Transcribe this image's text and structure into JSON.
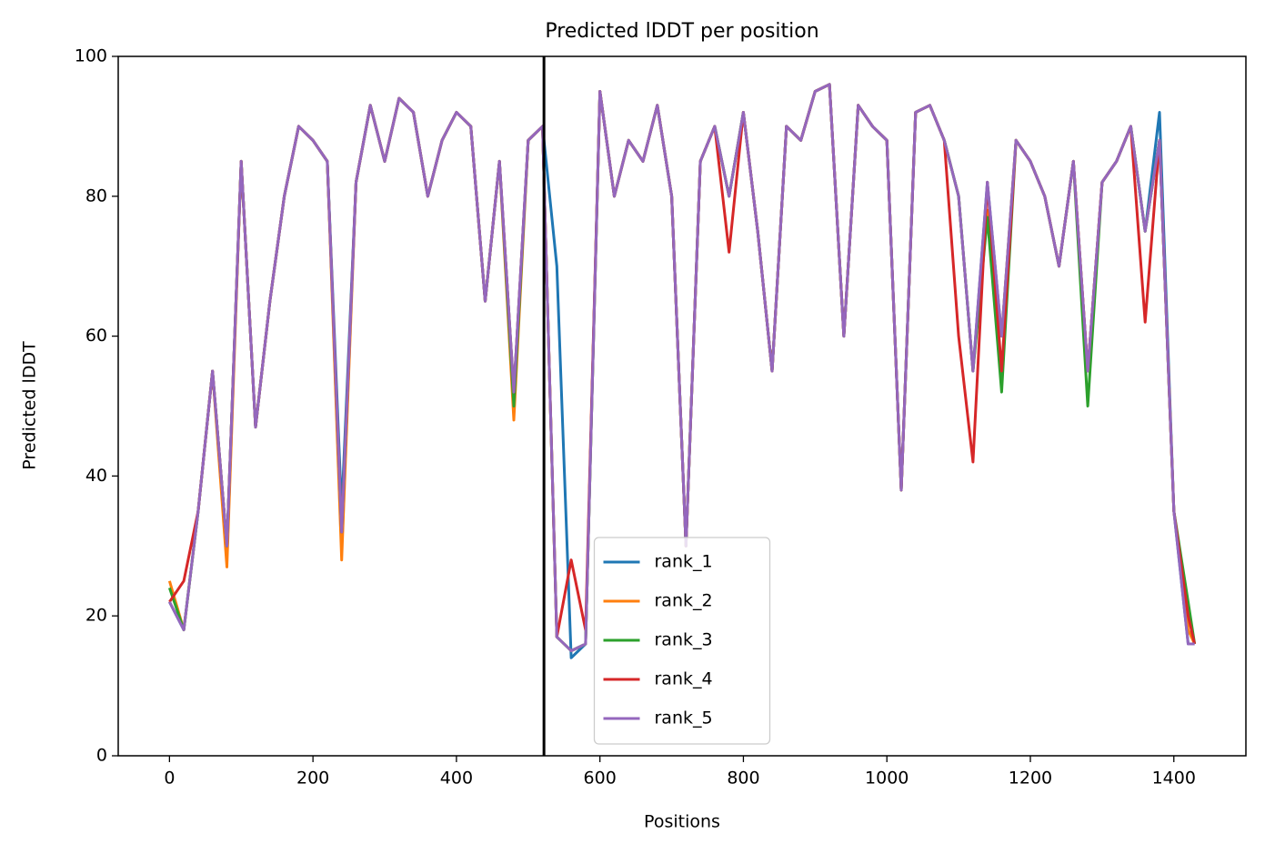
{
  "chart_data": {
    "type": "line",
    "title": "Predicted lDDT per position",
    "xlabel": "Positions",
    "ylabel": "Predicted lDDT",
    "x": [
      0,
      20,
      40,
      60,
      80,
      100,
      120,
      140,
      160,
      180,
      200,
      220,
      240,
      260,
      280,
      300,
      320,
      340,
      360,
      380,
      400,
      420,
      440,
      460,
      480,
      500,
      520,
      540,
      560,
      580,
      600,
      620,
      640,
      660,
      680,
      700,
      720,
      740,
      760,
      780,
      800,
      820,
      840,
      860,
      880,
      900,
      920,
      940,
      960,
      980,
      1000,
      1020,
      1040,
      1060,
      1080,
      1100,
      1120,
      1140,
      1160,
      1180,
      1200,
      1220,
      1240,
      1260,
      1280,
      1300,
      1320,
      1340,
      1360,
      1380,
      1400,
      1420,
      1429
    ],
    "series": [
      {
        "name": "rank_1",
        "color": "#1f77b4",
        "values": [
          22,
          18,
          35,
          55,
          30,
          85,
          47,
          65,
          80,
          90,
          88,
          85,
          35,
          82,
          93,
          85,
          94,
          92,
          80,
          88,
          92,
          90,
          65,
          85,
          52,
          88,
          90,
          70,
          14,
          16,
          95,
          80,
          88,
          85,
          93,
          80,
          30,
          85,
          90,
          80,
          92,
          75,
          55,
          90,
          88,
          95,
          96,
          60,
          93,
          90,
          88,
          38,
          92,
          93,
          88,
          80,
          55,
          82,
          60,
          88,
          85,
          80,
          70,
          85,
          55,
          82,
          85,
          90,
          75,
          92,
          35,
          16,
          16
        ]
      },
      {
        "name": "rank_2",
        "color": "#ff7f0e",
        "values": [
          25,
          18,
          35,
          55,
          27,
          85,
          47,
          65,
          80,
          90,
          88,
          85,
          28,
          82,
          93,
          85,
          94,
          92,
          80,
          88,
          92,
          90,
          65,
          85,
          48,
          88,
          90,
          17,
          15,
          16,
          95,
          80,
          88,
          85,
          93,
          80,
          30,
          85,
          90,
          80,
          92,
          75,
          55,
          90,
          88,
          95,
          96,
          60,
          93,
          90,
          88,
          38,
          92,
          93,
          88,
          80,
          55,
          78,
          60,
          88,
          85,
          80,
          70,
          85,
          55,
          82,
          85,
          90,
          75,
          88,
          35,
          18,
          16
        ]
      },
      {
        "name": "rank_3",
        "color": "#2ca02c",
        "values": [
          24,
          18,
          35,
          55,
          30,
          85,
          47,
          65,
          80,
          90,
          88,
          85,
          32,
          82,
          93,
          85,
          94,
          92,
          80,
          88,
          92,
          90,
          65,
          85,
          50,
          88,
          90,
          17,
          15,
          16,
          95,
          80,
          88,
          85,
          93,
          80,
          30,
          85,
          90,
          80,
          92,
          75,
          55,
          90,
          88,
          95,
          96,
          60,
          93,
          90,
          88,
          38,
          92,
          93,
          88,
          80,
          55,
          77,
          52,
          88,
          85,
          80,
          70,
          85,
          50,
          82,
          85,
          90,
          75,
          88,
          35,
          22,
          16
        ]
      },
      {
        "name": "rank_4",
        "color": "#d62728",
        "values": [
          22,
          25,
          35,
          55,
          30,
          85,
          47,
          65,
          80,
          90,
          88,
          85,
          32,
          82,
          93,
          85,
          94,
          92,
          80,
          88,
          92,
          90,
          65,
          85,
          52,
          88,
          90,
          17,
          28,
          18,
          95,
          80,
          88,
          85,
          93,
          80,
          30,
          85,
          90,
          72,
          92,
          75,
          55,
          90,
          88,
          95,
          96,
          60,
          93,
          90,
          88,
          38,
          92,
          93,
          88,
          60,
          42,
          82,
          55,
          88,
          85,
          80,
          70,
          85,
          55,
          82,
          85,
          90,
          62,
          88,
          35,
          20,
          16
        ]
      },
      {
        "name": "rank_5",
        "color": "#9467bd",
        "values": [
          22,
          18,
          35,
          55,
          30,
          85,
          47,
          65,
          80,
          90,
          88,
          85,
          32,
          82,
          93,
          85,
          94,
          92,
          80,
          88,
          92,
          90,
          65,
          85,
          52,
          88,
          90,
          17,
          15,
          16,
          95,
          80,
          88,
          85,
          93,
          80,
          30,
          85,
          90,
          80,
          92,
          75,
          55,
          90,
          88,
          95,
          96,
          60,
          93,
          90,
          88,
          38,
          92,
          93,
          88,
          80,
          55,
          82,
          60,
          88,
          85,
          80,
          70,
          85,
          55,
          82,
          85,
          90,
          75,
          88,
          35,
          16,
          16
        ]
      }
    ],
    "vline": 522,
    "vline_color": "#000000",
    "xlim": [
      -71.45,
      1500.45
    ],
    "xticks": [
      0,
      200,
      400,
      600,
      800,
      1000,
      1200,
      1400
    ],
    "ylim": [
      0,
      100
    ],
    "yticks": [
      0,
      20,
      40,
      60,
      80,
      100
    ],
    "legend": "lower center",
    "grid": false
  }
}
